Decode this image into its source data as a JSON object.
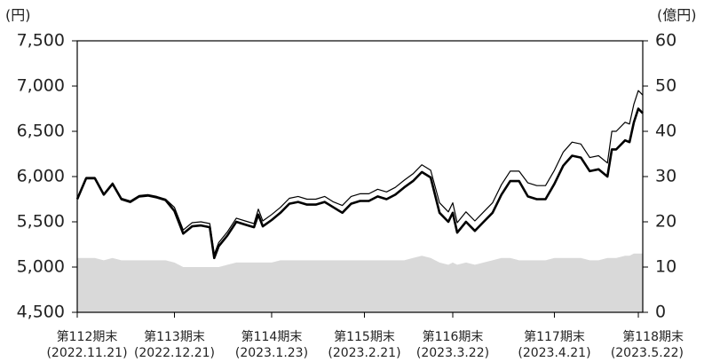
{
  "chart_data": {
    "type": "line",
    "y_unit": "(円)",
    "y2_unit": "(億円)",
    "x": [
      0,
      2,
      4,
      6,
      8,
      10,
      12,
      14,
      16,
      18,
      20,
      22,
      24,
      26,
      28,
      30,
      31,
      32,
      34,
      36,
      38,
      40,
      41,
      42,
      44,
      46,
      48,
      50,
      52,
      54,
      56,
      58,
      60,
      62,
      64,
      66,
      68,
      70,
      72,
      74,
      76,
      78,
      80,
      82,
      84,
      85,
      86,
      88,
      90,
      92,
      94,
      96,
      98,
      100,
      102,
      104,
      106,
      108,
      110,
      112,
      114,
      116,
      118,
      120,
      121,
      122,
      124,
      125,
      126,
      127,
      128
    ],
    "series": [
      {
        "color": "#d9d9d9",
        "axis": "y2",
        "style": "area",
        "values": [
          12,
          12,
          12,
          11.5,
          12,
          11.5,
          11.5,
          11.5,
          11.5,
          11.5,
          11.5,
          11,
          10,
          10,
          10,
          10,
          10,
          10,
          10.5,
          11,
          11,
          11,
          11,
          11,
          11,
          11.5,
          11.5,
          11.5,
          11.5,
          11.5,
          11.5,
          11.5,
          11.5,
          11.5,
          11.5,
          11.5,
          11.5,
          11.5,
          11.5,
          11.5,
          12,
          12.5,
          12,
          11,
          10.5,
          11,
          10.5,
          11,
          10.5,
          11,
          11.5,
          12,
          12,
          11.5,
          11.5,
          11.5,
          11.5,
          12,
          12,
          12,
          12,
          11.5,
          11.5,
          12,
          12,
          12,
          12.5,
          12.5,
          13,
          13,
          13
        ]
      },
      {
        "color": "#000000",
        "width": 1.2,
        "values": [
          5760,
          5990,
          5990,
          5810,
          5930,
          5760,
          5730,
          5790,
          5800,
          5780,
          5750,
          5660,
          5410,
          5490,
          5500,
          5480,
          5140,
          5270,
          5390,
          5540,
          5510,
          5480,
          5640,
          5510,
          5580,
          5660,
          5760,
          5780,
          5750,
          5750,
          5780,
          5720,
          5680,
          5780,
          5810,
          5810,
          5860,
          5830,
          5880,
          5960,
          6030,
          6130,
          6070,
          5710,
          5610,
          5710,
          5490,
          5610,
          5510,
          5610,
          5710,
          5910,
          6060,
          6060,
          5930,
          5900,
          5900,
          6070,
          6270,
          6380,
          6360,
          6210,
          6230,
          6150,
          6500,
          6500,
          6600,
          6580,
          6800,
          6950,
          6900
        ]
      },
      {
        "color": "#000000",
        "width": 2.6,
        "values": [
          5750,
          5980,
          5980,
          5800,
          5920,
          5750,
          5720,
          5780,
          5790,
          5770,
          5740,
          5620,
          5370,
          5450,
          5460,
          5440,
          5100,
          5230,
          5350,
          5500,
          5470,
          5440,
          5580,
          5450,
          5520,
          5600,
          5700,
          5720,
          5690,
          5690,
          5720,
          5660,
          5600,
          5700,
          5730,
          5730,
          5780,
          5750,
          5800,
          5880,
          5950,
          6050,
          5990,
          5600,
          5500,
          5600,
          5380,
          5500,
          5400,
          5500,
          5600,
          5800,
          5950,
          5950,
          5780,
          5750,
          5750,
          5920,
          6120,
          6230,
          6210,
          6060,
          6080,
          6000,
          6300,
          6300,
          6400,
          6380,
          6600,
          6750,
          6700
        ]
      }
    ],
    "xlim": [
      0,
      128
    ],
    "xticks": [
      {
        "value": 0,
        "label": "第112期末",
        "date": "(2022.11.21)"
      },
      {
        "value": 22,
        "label": "第113期末",
        "date": "(2022.12.21)"
      },
      {
        "value": 44,
        "label": "第114期末",
        "date": "(2023.1.23)"
      },
      {
        "value": 65,
        "label": "第115期末",
        "date": "(2023.2.21)"
      },
      {
        "value": 85,
        "label": "第116期末",
        "date": "(2023.3.22)"
      },
      {
        "value": 108,
        "label": "第117期末",
        "date": "(2023.4.21)"
      },
      {
        "value": 127,
        "label": "第118期末",
        "date": "(2023.5.22)"
      }
    ],
    "ylim": [
      4500,
      7500
    ],
    "yticks": [
      {
        "value": 4500,
        "label": "4,500"
      },
      {
        "value": 5000,
        "label": "5,000"
      },
      {
        "value": 5500,
        "label": "5,500"
      },
      {
        "value": 6000,
        "label": "6,000"
      },
      {
        "value": 6500,
        "label": "6,500"
      },
      {
        "value": 7000,
        "label": "7,000"
      },
      {
        "value": 7500,
        "label": "7,500"
      }
    ],
    "y2lim": [
      0,
      60
    ],
    "y2ticks": [
      0,
      10,
      20,
      30,
      40,
      50,
      60
    ]
  }
}
